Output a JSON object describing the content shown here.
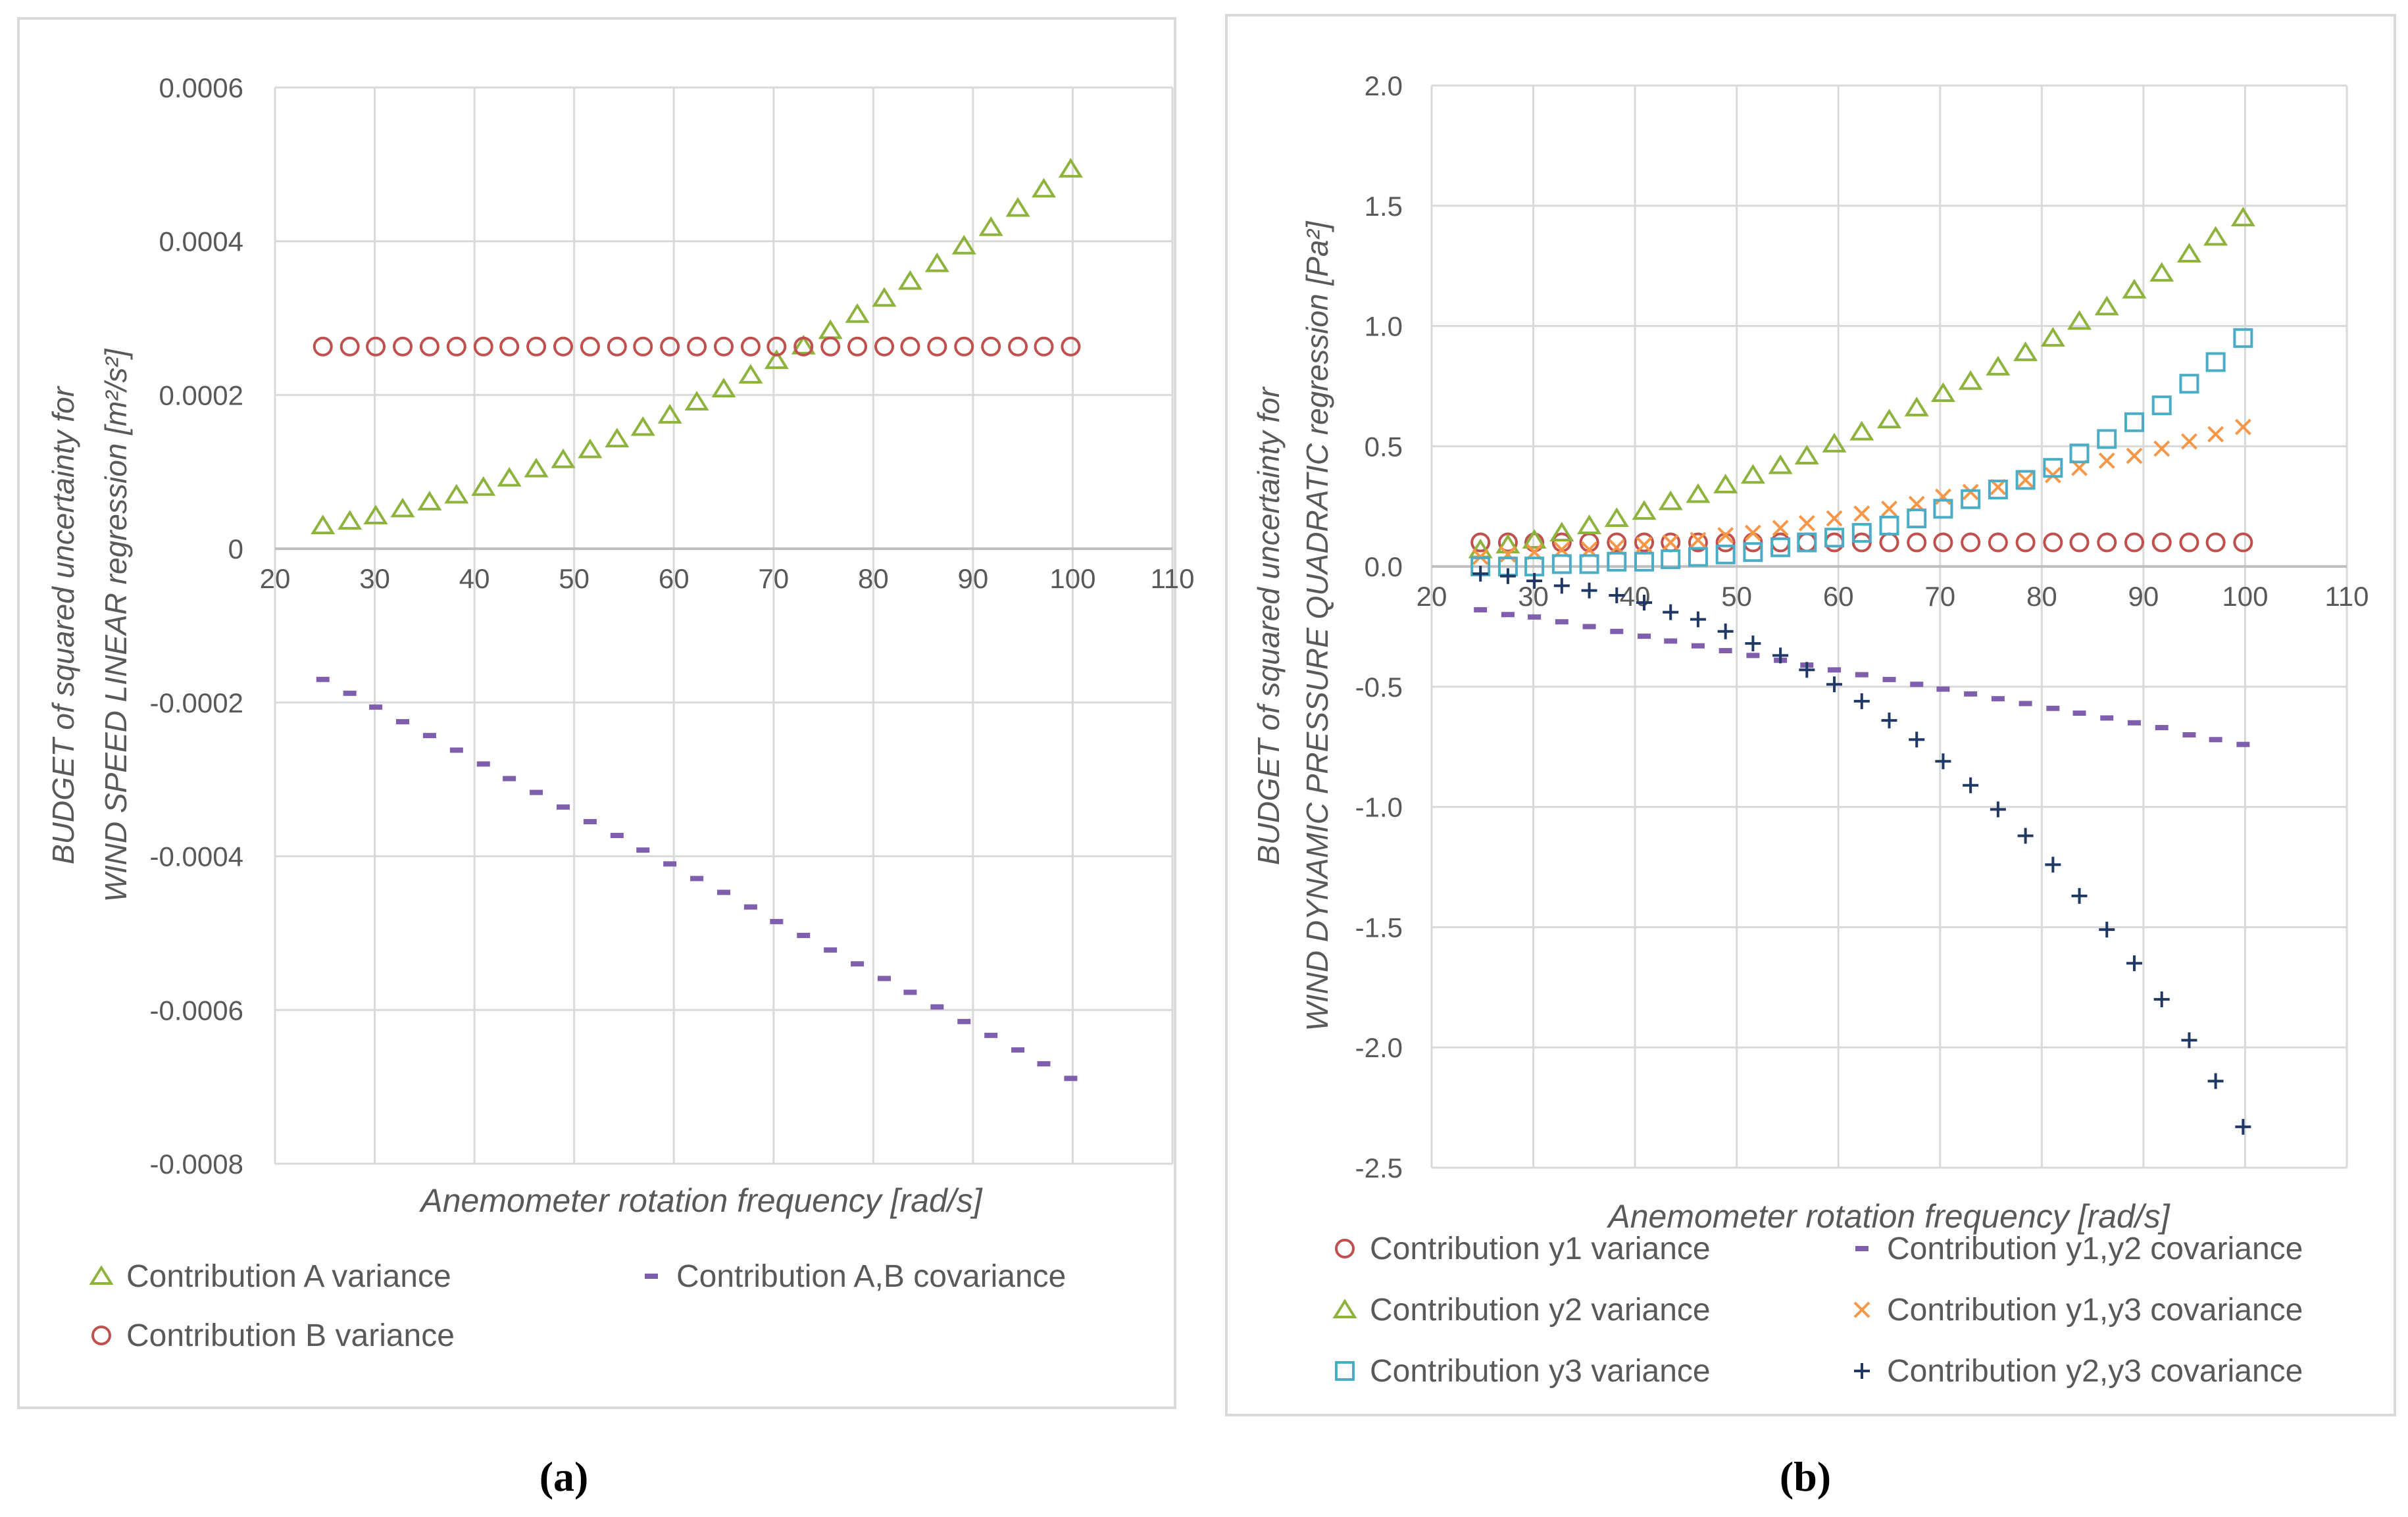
{
  "chart_data": [
    {
      "type": "scatter",
      "panel_label": "(a)",
      "xlabel": "Anemometer rotation frequency [rad/s]",
      "ylabel_line1": "BUDGET of squared uncertainty for",
      "ylabel_line2": "WIND SPEED LINEAR  regression  [m²/s²]",
      "xlim": [
        20,
        110
      ],
      "ylim": [
        -0.0008,
        0.0006
      ],
      "x_ticks": [
        "20",
        "30",
        "40",
        "50",
        "60",
        "70",
        "80",
        "90",
        "100",
        "110"
      ],
      "y_ticks": [
        "-0.0008",
        "-0.0006",
        "-0.0004",
        "-0.0002",
        "0",
        "0.0002",
        "0.0004",
        "0.0006"
      ],
      "grid": true,
      "legend_position": "bottom",
      "x": [
        24.8,
        27.5,
        30.1,
        32.8,
        35.5,
        38.2,
        40.9,
        43.5,
        46.2,
        48.9,
        51.6,
        54.3,
        56.9,
        59.6,
        62.3,
        65.0,
        67.7,
        70.3,
        73.0,
        75.7,
        78.4,
        81.1,
        83.7,
        86.4,
        89.1,
        91.8,
        94.5,
        97.1,
        99.8
      ],
      "series": [
        {
          "name": "Contribution A variance",
          "marker": "triangle",
          "color": "#8DB33D",
          "values": [
            3e-05,
            3.6e-05,
            4.3e-05,
            5.2e-05,
            6.1e-05,
            7e-05,
            8e-05,
            9.2e-05,
            0.000104,
            0.000116,
            0.000129,
            0.000143,
            0.000158,
            0.000174,
            0.000191,
            0.000208,
            0.000226,
            0.000245,
            0.000264,
            0.000284,
            0.000305,
            0.000326,
            0.000348,
            0.000371,
            0.000394,
            0.000418,
            0.000443,
            0.000468,
            0.000494
          ]
        },
        {
          "name": "Contribution A,B covariance",
          "marker": "dash",
          "color": "#7F5FAD",
          "values": [
            -0.00017,
            -0.000188,
            -0.000206,
            -0.000225,
            -0.000243,
            -0.000262,
            -0.00028,
            -0.000299,
            -0.000317,
            -0.000336,
            -0.000355,
            -0.000373,
            -0.000392,
            -0.00041,
            -0.000429,
            -0.000447,
            -0.000466,
            -0.000485,
            -0.000503,
            -0.000522,
            -0.00054,
            -0.000559,
            -0.000577,
            -0.000596,
            -0.000615,
            -0.000633,
            -0.000652,
            -0.00067,
            -0.000689
          ]
        },
        {
          "name": "Contribution B variance",
          "marker": "circle",
          "color": "#C0504D",
          "values": [
            0.000263,
            0.000263,
            0.000263,
            0.000263,
            0.000263,
            0.000263,
            0.000263,
            0.000263,
            0.000263,
            0.000263,
            0.000263,
            0.000263,
            0.000263,
            0.000263,
            0.000263,
            0.000263,
            0.000263,
            0.000263,
            0.000263,
            0.000263,
            0.000263,
            0.000263,
            0.000263,
            0.000263,
            0.000263,
            0.000263,
            0.000263,
            0.000263,
            0.000263
          ]
        }
      ]
    },
    {
      "type": "scatter",
      "panel_label": "(b)",
      "xlabel": "Anemometer rotation frequency [rad/s]",
      "ylabel_line1": "BUDGET of squared uncertainty for",
      "ylabel_line2": "WIND DYNAMIC PRESSURE QUADRATIC  regression  [Pa²]",
      "xlim": [
        20,
        110
      ],
      "ylim": [
        -2.5,
        2.0
      ],
      "x_ticks": [
        "20",
        "30",
        "40",
        "50",
        "60",
        "70",
        "80",
        "90",
        "100",
        "110"
      ],
      "y_ticks": [
        "-2.5",
        "-2.0",
        "-1.5",
        "-1.0",
        "-0.5",
        "0.0",
        "0.5",
        "1.0",
        "1.5",
        "2.0"
      ],
      "grid": true,
      "legend_position": "bottom",
      "x": [
        24.8,
        27.5,
        30.1,
        32.8,
        35.5,
        38.2,
        40.9,
        43.5,
        46.2,
        48.9,
        51.6,
        54.3,
        56.9,
        59.6,
        62.3,
        65.0,
        67.7,
        70.3,
        73.0,
        75.7,
        78.4,
        81.1,
        83.7,
        86.4,
        89.1,
        91.8,
        94.5,
        97.1,
        99.8
      ],
      "series": [
        {
          "name": "Contribution y1 variance",
          "marker": "circle",
          "color": "#C0504D",
          "values": [
            0.1,
            0.1,
            0.1,
            0.1,
            0.1,
            0.1,
            0.1,
            0.1,
            0.1,
            0.1,
            0.1,
            0.1,
            0.1,
            0.1,
            0.1,
            0.1,
            0.1,
            0.1,
            0.1,
            0.1,
            0.1,
            0.1,
            0.1,
            0.1,
            0.1,
            0.1,
            0.1,
            0.1,
            0.1
          ]
        },
        {
          "name": "Contribution y1,y2 covariance",
          "marker": "dash",
          "color": "#7F5FAD",
          "values": [
            -0.18,
            -0.2,
            -0.21,
            -0.23,
            -0.25,
            -0.27,
            -0.29,
            -0.31,
            -0.33,
            -0.35,
            -0.37,
            -0.39,
            -0.41,
            -0.43,
            -0.45,
            -0.47,
            -0.49,
            -0.51,
            -0.53,
            -0.55,
            -0.57,
            -0.59,
            -0.61,
            -0.63,
            -0.65,
            -0.67,
            -0.7,
            -0.72,
            -0.74
          ]
        },
        {
          "name": "Contribution y2 variance",
          "marker": "triangle",
          "color": "#8DB33D",
          "values": [
            0.07,
            0.09,
            0.11,
            0.14,
            0.17,
            0.2,
            0.23,
            0.27,
            0.3,
            0.34,
            0.38,
            0.42,
            0.46,
            0.51,
            0.56,
            0.61,
            0.66,
            0.72,
            0.77,
            0.83,
            0.89,
            0.95,
            1.02,
            1.08,
            1.15,
            1.22,
            1.3,
            1.37,
            1.45
          ]
        },
        {
          "name": "Contribution y1,y3 covariance",
          "marker": "x",
          "color": "#F79646",
          "values": [
            0.04,
            0.05,
            0.06,
            0.07,
            0.07,
            0.08,
            0.09,
            0.1,
            0.11,
            0.13,
            0.14,
            0.16,
            0.18,
            0.2,
            0.22,
            0.24,
            0.26,
            0.29,
            0.31,
            0.33,
            0.36,
            0.38,
            0.41,
            0.44,
            0.46,
            0.49,
            0.52,
            0.55,
            0.58
          ]
        },
        {
          "name": "Contribution y3 variance",
          "marker": "square",
          "color": "#4BACC6",
          "values": [
            0.0,
            0.0,
            0.0,
            0.01,
            0.01,
            0.02,
            0.02,
            0.03,
            0.04,
            0.05,
            0.06,
            0.08,
            0.1,
            0.12,
            0.14,
            0.17,
            0.2,
            0.24,
            0.28,
            0.32,
            0.36,
            0.41,
            0.47,
            0.53,
            0.6,
            0.67,
            0.76,
            0.85,
            0.95
          ]
        },
        {
          "name": "Contribution y2,y3 covariance",
          "marker": "plus",
          "color": "#1F3864",
          "values": [
            -0.03,
            -0.04,
            -0.06,
            -0.08,
            -0.1,
            -0.12,
            -0.15,
            -0.19,
            -0.22,
            -0.27,
            -0.32,
            -0.37,
            -0.43,
            -0.49,
            -0.56,
            -0.64,
            -0.72,
            -0.81,
            -0.91,
            -1.01,
            -1.12,
            -1.24,
            -1.37,
            -1.51,
            -1.65,
            -1.8,
            -1.97,
            -2.14,
            -2.33
          ]
        }
      ]
    }
  ]
}
